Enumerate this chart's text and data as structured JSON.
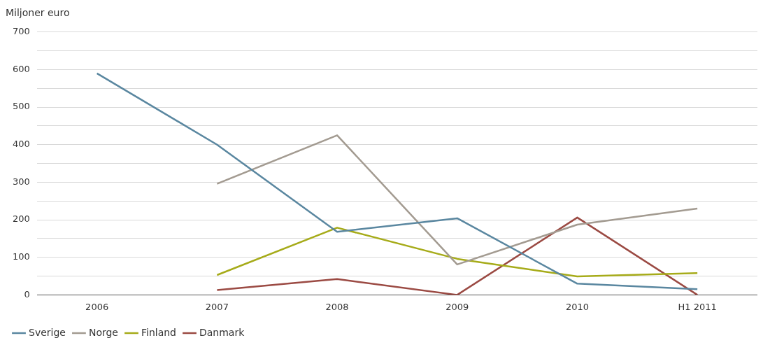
{
  "chart_data": {
    "type": "line",
    "ylabel": "Miljoner euro",
    "categories": [
      "2006",
      "2007",
      "2008",
      "2009",
      "2010",
      "H1 2011"
    ],
    "series": [
      {
        "name": "Sverige",
        "color": "#5a87a0",
        "values": [
          590,
          400,
          168,
          204,
          30,
          15
        ]
      },
      {
        "name": "Norge",
        "color": "#a39b91",
        "values": [
          null,
          296,
          425,
          81,
          187,
          230
        ]
      },
      {
        "name": "Finland",
        "color": "#a6ab19",
        "values": [
          null,
          53,
          179,
          96,
          49,
          58
        ]
      },
      {
        "name": "Danmark",
        "color": "#9b4a43",
        "values": [
          null,
          13,
          42,
          0,
          206,
          0
        ]
      }
    ],
    "ylim": [
      0,
      700
    ],
    "yticks": [
      0,
      {
        "value": 50,
        "label": null
      },
      100,
      {
        "value": 150,
        "label": null
      },
      200,
      {
        "value": 250,
        "label": null
      },
      300,
      {
        "value": 350,
        "label": null
      },
      400,
      {
        "value": 450,
        "label": null
      },
      500,
      {
        "value": 550,
        "label": null
      },
      600,
      {
        "value": 650,
        "label": null
      },
      700
    ],
    "grid": "y",
    "legend": "bottom",
    "marker": "none",
    "line_style": "solid"
  }
}
